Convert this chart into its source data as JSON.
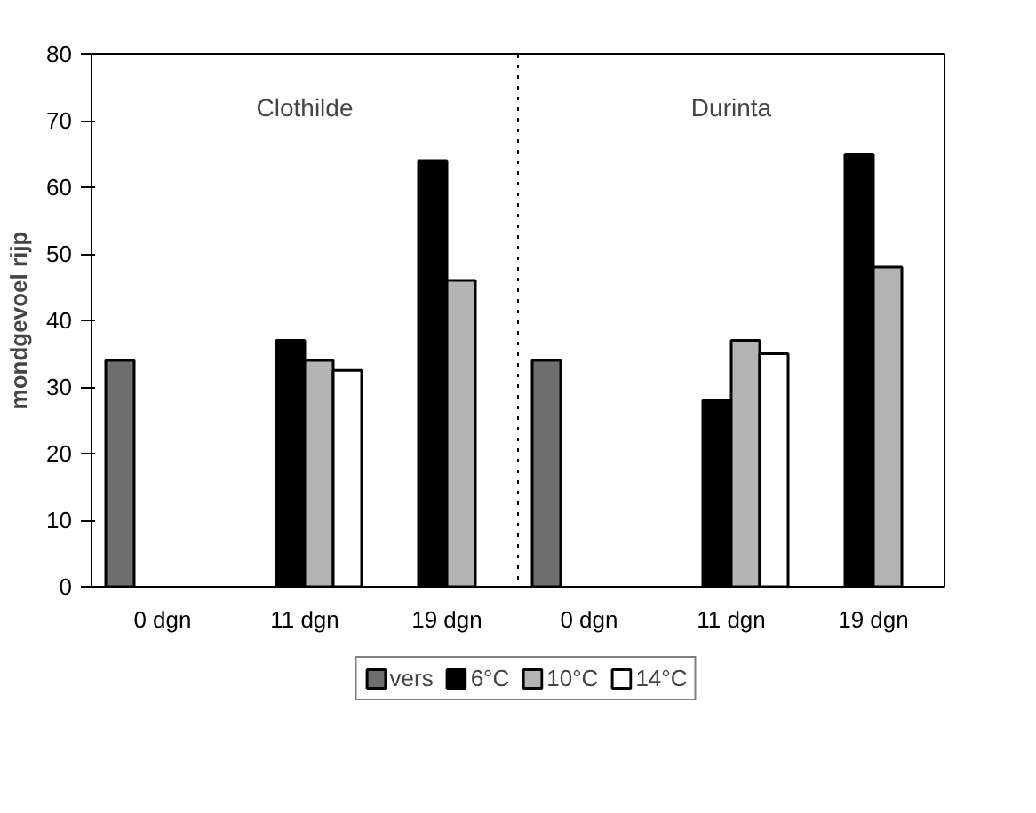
{
  "chart_data": {
    "type": "bar",
    "ylabel": "mondgevoel rijp",
    "categories": [
      "0 dgn",
      "11 dgn",
      "19 dgn",
      "0 dgn",
      "11 dgn",
      "19 dgn"
    ],
    "series": [
      {
        "name": "vers",
        "color": "#6e6e6e",
        "values": [
          34,
          null,
          null,
          34,
          null,
          null
        ]
      },
      {
        "name": "6°C",
        "color": "#000000",
        "values": [
          null,
          37,
          64,
          null,
          28,
          65
        ]
      },
      {
        "name": "10°C",
        "color": "#b4b4b4",
        "values": [
          null,
          34,
          46,
          null,
          37,
          48
        ]
      },
      {
        "name": "14°C",
        "color": "#ffffff",
        "values": [
          null,
          32.5,
          null,
          null,
          35,
          null
        ]
      }
    ],
    "ylim": [
      0,
      80
    ],
    "yticks": [
      0,
      10,
      20,
      30,
      40,
      50,
      60,
      70,
      80
    ],
    "annotations": [
      "Clothilde",
      "Durinta"
    ],
    "grid": false,
    "legend": "bottom"
  }
}
